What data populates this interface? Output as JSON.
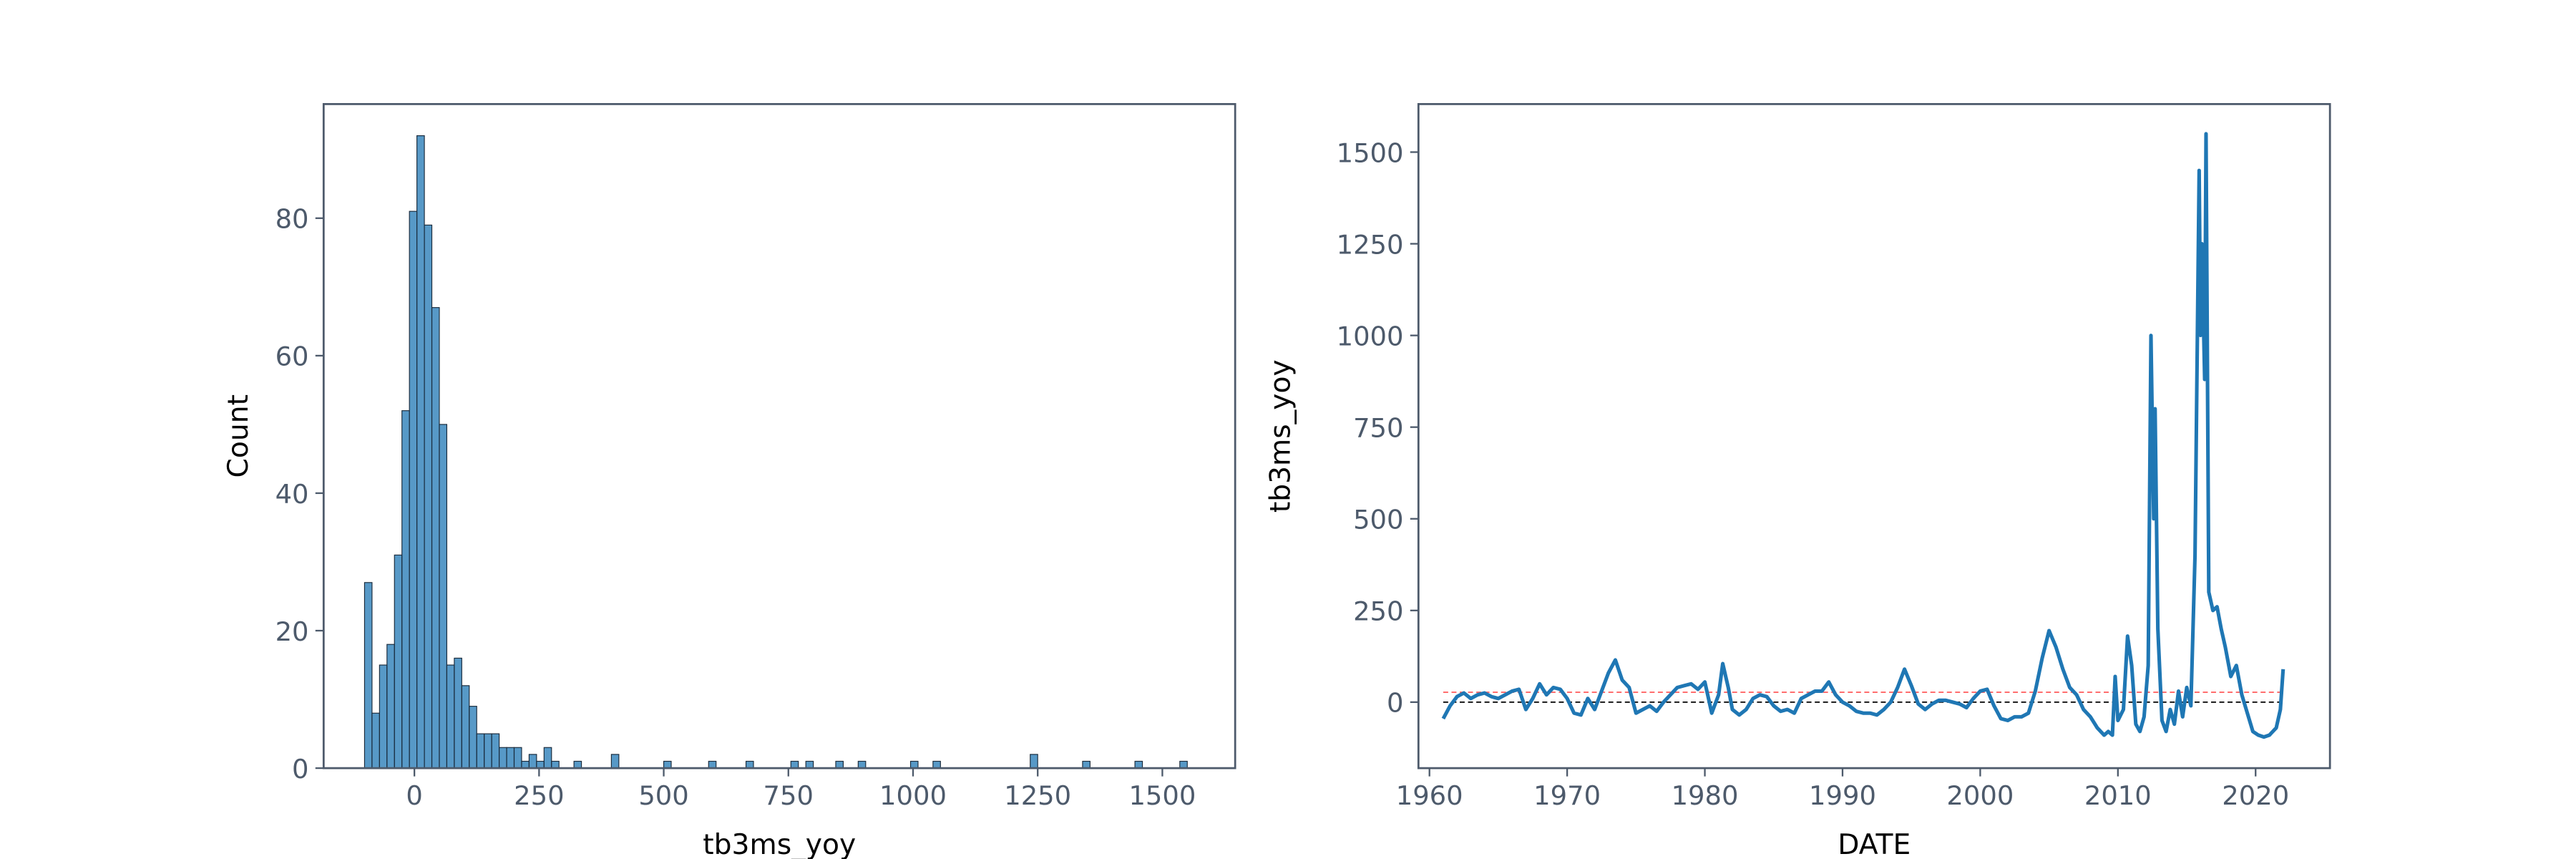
{
  "chart_data": [
    {
      "type": "histogram",
      "xlabel": "tb3ms_yoy",
      "ylabel": "Count",
      "color": "#1f77b4",
      "bins": [
        -100,
        -85,
        -70,
        -55,
        -40,
        -25,
        -10,
        5,
        20,
        35,
        50,
        65,
        80,
        95,
        110,
        125,
        140,
        155,
        170,
        185,
        200,
        215,
        230,
        245,
        260,
        275,
        290,
        305,
        320,
        335,
        350,
        365,
        380,
        395,
        410,
        425,
        440,
        455,
        470,
        485,
        500,
        515,
        530,
        545,
        560,
        575,
        590,
        605,
        620,
        635,
        650,
        665,
        680,
        695,
        710,
        725,
        740,
        755,
        770,
        785,
        800,
        815,
        830,
        845,
        860,
        875,
        890,
        905,
        920,
        935,
        950,
        965,
        980,
        995,
        1010,
        1025,
        1040,
        1055,
        1070,
        1085,
        1100,
        1115,
        1130,
        1145,
        1160,
        1175,
        1190,
        1205,
        1220,
        1235,
        1250,
        1265,
        1280,
        1295,
        1310,
        1325,
        1340,
        1355,
        1370,
        1385,
        1400,
        1415,
        1430,
        1445,
        1460,
        1475,
        1490,
        1505,
        1520,
        1535,
        1550
      ],
      "values": [
        27,
        8,
        15,
        18,
        31,
        52,
        81,
        92,
        79,
        67,
        50,
        15,
        16,
        12,
        9,
        5,
        5,
        5,
        3,
        3,
        3,
        1,
        2,
        1,
        3,
        1,
        0,
        0,
        1,
        0,
        0,
        0,
        0,
        2,
        0,
        0,
        0,
        0,
        0,
        0,
        1,
        0,
        0,
        0,
        0,
        0,
        1,
        0,
        0,
        0,
        0,
        1,
        0,
        0,
        0,
        0,
        0,
        1,
        0,
        1,
        0,
        0,
        0,
        1,
        0,
        0,
        1,
        0,
        0,
        0,
        0,
        0,
        0,
        1,
        0,
        0,
        1,
        0,
        0,
        0,
        0,
        0,
        0,
        0,
        0,
        0,
        0,
        0,
        0,
        2,
        0,
        0,
        0,
        0,
        0,
        0,
        1,
        0,
        0,
        0,
        0,
        0,
        0,
        1,
        0,
        0,
        0,
        0,
        0,
        1
      ],
      "xlim": [
        -182,
        1646
      ],
      "ylim": [
        0,
        96.6
      ],
      "xticks": [
        0,
        250,
        500,
        750,
        1000,
        1250,
        1500
      ],
      "yticks": [
        0,
        20,
        40,
        60,
        80
      ]
    },
    {
      "type": "line",
      "xlabel": "DATE",
      "ylabel": "tb3ms_yoy",
      "color": "#1f77b4",
      "x": [
        1961,
        1961.5,
        1962,
        1962.5,
        1963,
        1963.5,
        1964,
        1964.5,
        1965,
        1965.5,
        1966,
        1966.5,
        1967,
        1967.5,
        1968,
        1968.5,
        1969,
        1969.5,
        1970,
        1970.5,
        1971,
        1971.5,
        1972,
        1972.5,
        1973,
        1973.5,
        1974,
        1974.5,
        1975,
        1975.5,
        1976,
        1976.5,
        1977,
        1977.5,
        1978,
        1978.5,
        1979,
        1979.5,
        1980,
        1980.5,
        1981,
        1981.3,
        1981.7,
        1982,
        1982.5,
        1983,
        1983.5,
        1984,
        1984.5,
        1985,
        1985.5,
        1986,
        1986.5,
        1987,
        1987.5,
        1988,
        1988.5,
        1989,
        1989.5,
        1990,
        1990.5,
        1991,
        1991.5,
        1992,
        1992.5,
        1993,
        1993.5,
        1994,
        1994.5,
        1995,
        1995.5,
        1996,
        1996.5,
        1997,
        1997.5,
        1998,
        1998.5,
        1999,
        1999.5,
        2000,
        2000.5,
        2001,
        2001.5,
        2002,
        2002.5,
        2003,
        2003.5,
        2004,
        2004.5,
        2005,
        2005.5,
        2006,
        2006.5,
        2007,
        2007.5,
        2008,
        2008.5,
        2009,
        2009.3,
        2009.6,
        2009.8,
        2010,
        2010.4,
        2010.7,
        2011,
        2011.3,
        2011.6,
        2011.9,
        2012.2,
        2012.4,
        2012.6,
        2012.7,
        2012.9,
        2013.2,
        2013.5,
        2013.8,
        2014.1,
        2014.4,
        2014.7,
        2015,
        2015.3,
        2015.6,
        2015.9,
        2016,
        2016.1,
        2016.3,
        2016.4,
        2016.6,
        2016.9,
        2017.2,
        2017.5,
        2017.8,
        2018.2,
        2018.6,
        2019,
        2019.4,
        2019.8,
        2020.2,
        2020.6,
        2021,
        2021.5,
        2021.8,
        2022
      ],
      "values": [
        -45,
        -10,
        15,
        25,
        10,
        20,
        25,
        15,
        10,
        20,
        30,
        35,
        -20,
        10,
        50,
        20,
        40,
        35,
        10,
        -30,
        -35,
        10,
        -20,
        30,
        80,
        115,
        60,
        40,
        -30,
        -20,
        -10,
        -25,
        0,
        20,
        40,
        45,
        50,
        35,
        55,
        -30,
        20,
        105,
        40,
        -20,
        -35,
        -20,
        10,
        20,
        15,
        -10,
        -25,
        -20,
        -30,
        10,
        20,
        30,
        30,
        55,
        20,
        0,
        -10,
        -25,
        -30,
        -30,
        -35,
        -20,
        0,
        40,
        90,
        45,
        -5,
        -20,
        -5,
        5,
        5,
        0,
        -5,
        -15,
        10,
        30,
        35,
        -10,
        -45,
        -50,
        -40,
        -40,
        -30,
        30,
        120,
        195,
        150,
        90,
        40,
        20,
        -20,
        -40,
        -70,
        -90,
        -80,
        -90,
        70,
        -50,
        -20,
        180,
        100,
        -60,
        -80,
        -40,
        100,
        1000,
        500,
        800,
        200,
        -50,
        -80,
        -20,
        -60,
        30,
        -40,
        40,
        -10,
        400,
        1450,
        1000,
        1250,
        880,
        1550,
        300,
        250,
        260,
        200,
        150,
        70,
        100,
        20,
        -30,
        -80,
        -90,
        -95,
        -90,
        -70,
        -20,
        90
      ],
      "hlines": [
        {
          "value": 0,
          "color": "#000000"
        },
        {
          "value": 27,
          "color": "#ff6666"
        }
      ],
      "xlim": [
        1959.2,
        2025.4
      ],
      "ylim": [
        -180,
        1631
      ],
      "xticks": [
        1960,
        1970,
        1980,
        1990,
        2000,
        2010,
        2020
      ],
      "yticks": [
        0,
        250,
        500,
        750,
        1000,
        1250,
        1500
      ]
    }
  ]
}
